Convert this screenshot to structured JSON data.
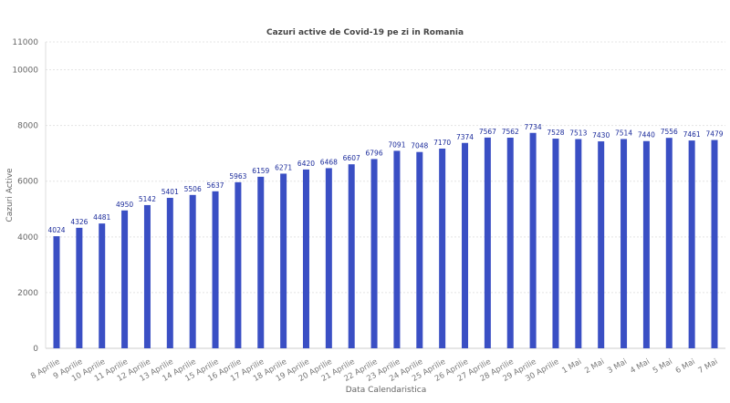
{
  "chart_data": {
    "type": "bar",
    "title": "Cazuri active de Covid-19 pe zi in Romania",
    "xlabel": "Data Calendaristica",
    "ylabel": "Cazuri Active",
    "ylim": [
      0,
      11000
    ],
    "yticks": [
      0,
      2000,
      4000,
      6000,
      8000,
      10000,
      11000
    ],
    "grid": true,
    "bar_color": "#3a4fc4",
    "label_color": "#1a2a9a",
    "categories": [
      "8 Aprilie",
      "9 Aprilie",
      "10 Aprilie",
      "11 Aprilie",
      "12 Aprilie",
      "13 Aprilie",
      "14 Aprilie",
      "15 Aprilie",
      "16 Aprilie",
      "17 Aprilie",
      "18 Aprilie",
      "19 Aprilie",
      "20 Aprilie",
      "21 Aprilie",
      "22 Aprilie",
      "23 Aprilie",
      "24 Aprilie",
      "25 Aprilie",
      "26 Aprilie",
      "27 Aprilie",
      "28 Aprilie",
      "29 Aprilie",
      "30 Aprilie",
      "1 Mai",
      "2 Mai",
      "3 Mai",
      "4 Mai",
      "5 Mai",
      "6 Mai",
      "7 Mai"
    ],
    "values": [
      4024,
      4326,
      4481,
      4950,
      5142,
      5401,
      5506,
      5637,
      5963,
      6159,
      6271,
      6420,
      6468,
      6607,
      6796,
      7091,
      7048,
      7170,
      7374,
      7567,
      7562,
      7734,
      7528,
      7513,
      7430,
      7514,
      7440,
      7556,
      7461,
      7479
    ]
  }
}
